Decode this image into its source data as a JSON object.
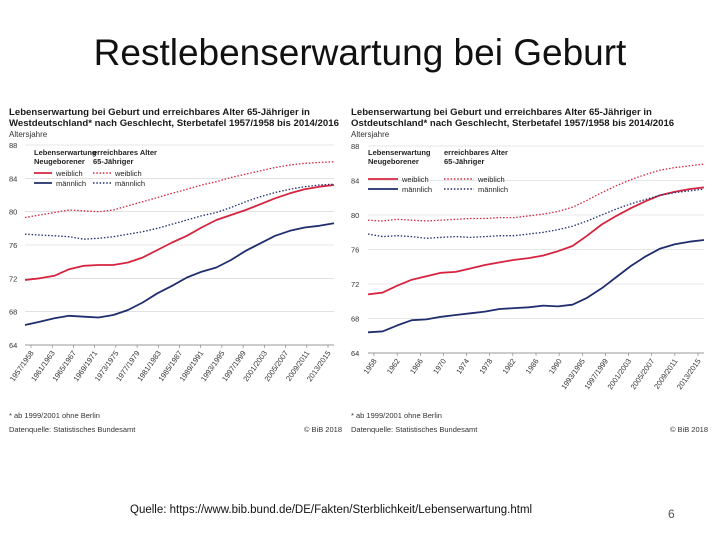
{
  "slide": {
    "title": "Restlebenserwartung bei Geburt",
    "source": "Quelle: https://www.bib.bund.de/DE/Fakten/Sterblichkeit/Lebenserwartung.html",
    "page_number": "6"
  },
  "colors": {
    "female": "#d6243f",
    "male": "#1f2e6e",
    "grid": "#d0d0d0",
    "axis": "#777777"
  },
  "chart_data": [
    {
      "type": "line",
      "title_lines": [
        "Lebenserwartung bei Geburt und erreichbares Alter 65-Jähriger in",
        "Westdeutschland* nach Geschlecht, Sterbetafel 1957/1958 bis 2014/2016"
      ],
      "ylabel": "Altersjahre",
      "ylim": [
        64,
        88
      ],
      "yticks": [
        "64",
        "68",
        "72",
        "76",
        "80",
        "84",
        "88"
      ],
      "x_labels": [
        "1957/1958",
        "1961/1963",
        "1965/1967",
        "1969/1971",
        "1973/1975",
        "1977/1979",
        "1981/1983",
        "1985/1987",
        "1989/1991",
        "1993/1995",
        "1997/1999",
        "2001/2003",
        "2005/2007",
        "2009/2011",
        "2013/2015"
      ],
      "legend": {
        "head_left": [
          "Lebenserwartung",
          "Neugeborener"
        ],
        "head_right": [
          "erreichbares Alter",
          "65-Jähriger"
        ],
        "left_female": "weiblich",
        "left_male": "männlich",
        "right_female": "weiblich",
        "right_male": "männlich"
      },
      "series": [
        {
          "name": "weiblich (Lebenserwartung Neugeborener)",
          "style": "solid",
          "color": "#d6243f",
          "values": [
            71.8,
            72.0,
            72.3,
            73.1,
            73.5,
            73.6,
            73.6,
            73.9,
            74.5,
            75.4,
            76.3,
            77.1,
            78.1,
            79.0,
            79.6,
            80.2,
            80.9,
            81.6,
            82.2,
            82.7,
            83.0,
            83.2
          ]
        },
        {
          "name": "männlich (Lebenserwartung Neugeborener)",
          "style": "solid",
          "color": "#1f2e6e",
          "values": [
            66.4,
            66.8,
            67.2,
            67.5,
            67.4,
            67.3,
            67.6,
            68.2,
            69.1,
            70.2,
            71.1,
            72.1,
            72.8,
            73.3,
            74.2,
            75.3,
            76.2,
            77.1,
            77.7,
            78.1,
            78.3,
            78.6
          ]
        },
        {
          "name": "weiblich (erreichbares Alter 65-Jähriger)",
          "style": "dotted",
          "color": "#d6243f",
          "values": [
            79.3,
            79.6,
            79.9,
            80.2,
            80.1,
            80.0,
            80.2,
            80.7,
            81.2,
            81.7,
            82.2,
            82.7,
            83.2,
            83.6,
            84.1,
            84.5,
            84.9,
            85.3,
            85.6,
            85.8,
            85.9,
            86.0
          ]
        },
        {
          "name": "männlich (erreichbares Alter 65-Jähriger)",
          "style": "dotted",
          "color": "#1f2e6e",
          "values": [
            77.3,
            77.2,
            77.1,
            77.0,
            76.7,
            76.8,
            77.0,
            77.3,
            77.6,
            78.0,
            78.5,
            79.0,
            79.5,
            79.9,
            80.5,
            81.2,
            81.8,
            82.3,
            82.7,
            83.0,
            83.2,
            83.3
          ]
        }
      ],
      "footnote": "* ab 1999/2001 ohne Berlin",
      "source": "Datenquelle: Statistisches Bundesamt",
      "copyright": "© BiB 2018"
    },
    {
      "type": "line",
      "title_lines": [
        "Lebenserwartung bei Geburt und erreichbares Alter 65-Jähriger in",
        "Ostdeutschland* nach Geschlecht, Sterbetafel 1957/1958 bis 2014/2016"
      ],
      "ylabel": "Altersjahre",
      "ylim": [
        64,
        88
      ],
      "yticks": [
        "64",
        "68",
        "72",
        "76",
        "80",
        "84",
        "88"
      ],
      "x_labels": [
        "1958",
        "1962",
        "1966",
        "1970",
        "1974",
        "1978",
        "1982",
        "1986",
        "1990",
        "1993/1995",
        "1997/1999",
        "2001/2003",
        "2005/2007",
        "2009/2011",
        "2013/2015"
      ],
      "legend": {
        "head_left": [
          "Lebenserwartung",
          "Neugeborener"
        ],
        "head_right": [
          "erreichbares Alter",
          "65-Jähriger"
        ],
        "left_female": "weiblich",
        "left_male": "männlich",
        "right_female": "weiblich",
        "right_male": "männlich"
      },
      "series": [
        {
          "name": "weiblich (Lebenserwartung Neugeborener)",
          "style": "solid",
          "color": "#d6243f",
          "values": [
            70.8,
            71.0,
            71.8,
            72.5,
            72.9,
            73.3,
            73.4,
            73.8,
            74.2,
            74.5,
            74.8,
            75.0,
            75.3,
            75.8,
            76.4,
            77.6,
            78.9,
            79.9,
            80.8,
            81.6,
            82.3,
            82.7,
            83.0,
            83.2
          ]
        },
        {
          "name": "männlich (Lebenserwartung Neugeborener)",
          "style": "solid",
          "color": "#1f2e6e",
          "values": [
            66.4,
            66.5,
            67.2,
            67.8,
            67.9,
            68.2,
            68.4,
            68.6,
            68.8,
            69.1,
            69.2,
            69.3,
            69.5,
            69.4,
            69.6,
            70.4,
            71.5,
            72.8,
            74.1,
            75.2,
            76.1,
            76.6,
            76.9,
            77.1
          ]
        },
        {
          "name": "weiblich (erreichbares Alter 65-Jähriger)",
          "style": "dotted",
          "color": "#d6243f",
          "values": [
            79.4,
            79.3,
            79.5,
            79.4,
            79.3,
            79.4,
            79.5,
            79.6,
            79.6,
            79.7,
            79.7,
            79.9,
            80.1,
            80.4,
            80.9,
            81.7,
            82.6,
            83.4,
            84.1,
            84.7,
            85.2,
            85.5,
            85.7,
            85.9
          ]
        },
        {
          "name": "männlich (erreichbares Alter 65-Jähriger)",
          "style": "dotted",
          "color": "#1f2e6e",
          "values": [
            77.8,
            77.5,
            77.6,
            77.5,
            77.3,
            77.4,
            77.5,
            77.4,
            77.5,
            77.6,
            77.6,
            77.8,
            78.0,
            78.3,
            78.7,
            79.3,
            80.0,
            80.7,
            81.3,
            81.8,
            82.3,
            82.6,
            82.8,
            83.0
          ]
        }
      ],
      "footnote": "* ab 1999/2001 ohne Berlin",
      "source": "Datenquelle: Statistisches Bundesamt",
      "copyright": "© BiB 2018"
    }
  ]
}
